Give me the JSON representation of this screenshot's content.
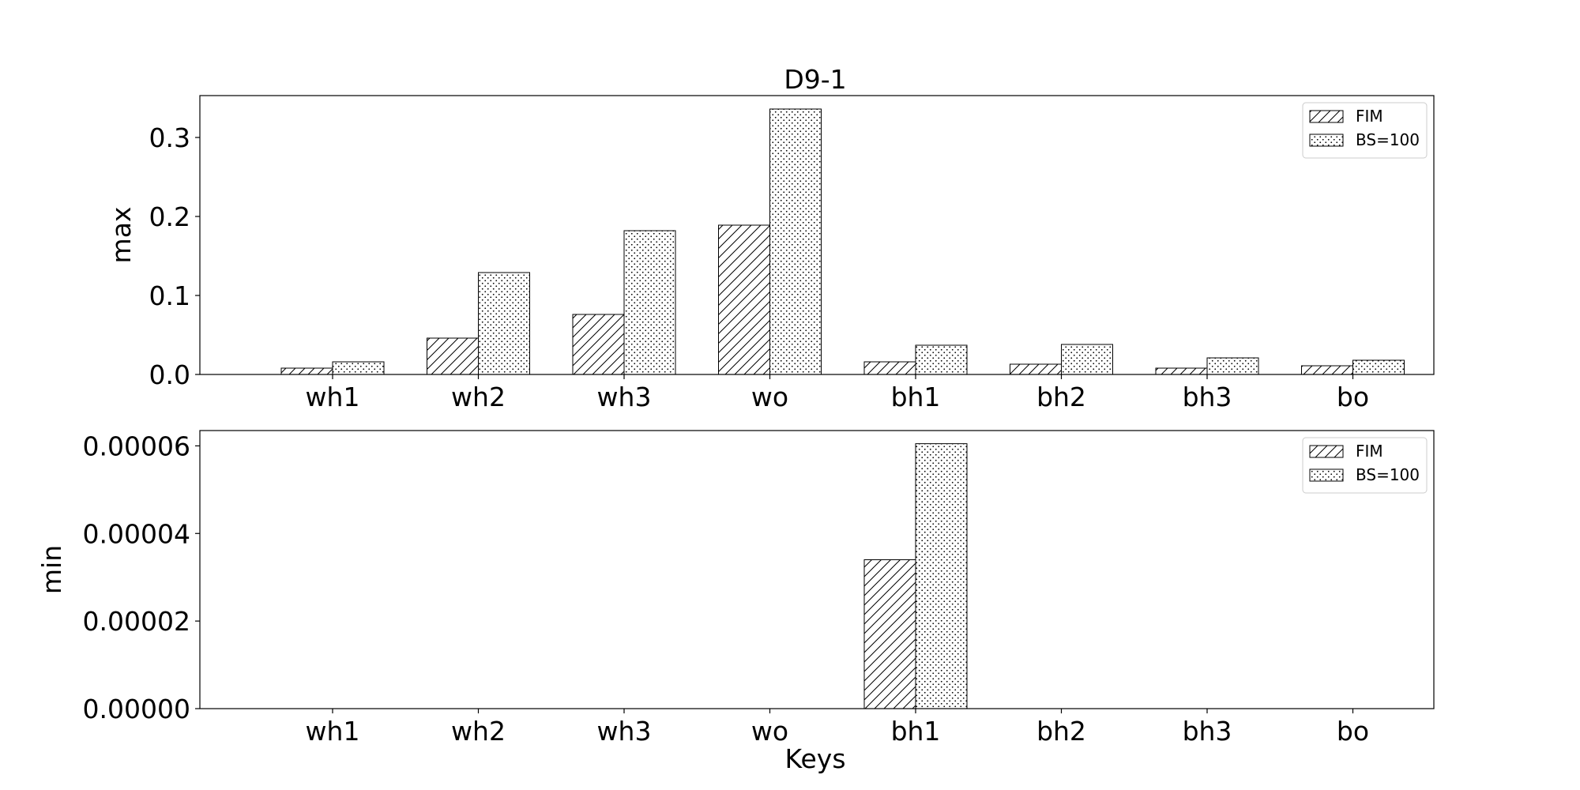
{
  "figure": {
    "title": "D9-1",
    "xlabel": "Keys"
  },
  "chart_data": [
    {
      "type": "bar",
      "title": "D9-1",
      "xlabel": "",
      "ylabel": "max",
      "ylim": [
        0,
        0.353
      ],
      "yticks": [
        "0.0",
        "0.1",
        "0.2",
        "0.3"
      ],
      "ytick_values": [
        0.0,
        0.1,
        0.2,
        0.3
      ],
      "categories": [
        "wh1",
        "wh2",
        "wh3",
        "wo",
        "bh1",
        "bh2",
        "bh3",
        "bo"
      ],
      "series": [
        {
          "name": "FIM",
          "pattern": "hatch-diagonal",
          "values": [
            0.008,
            0.046,
            0.076,
            0.189,
            0.016,
            0.013,
            0.008,
            0.011
          ]
        },
        {
          "name": "BS=100",
          "pattern": "hatch-dots",
          "values": [
            0.016,
            0.129,
            0.182,
            0.336,
            0.037,
            0.038,
            0.021,
            0.018
          ]
        }
      ],
      "legend": "top-right",
      "grid": false
    },
    {
      "type": "bar",
      "title": "",
      "xlabel": "Keys",
      "ylabel": "min",
      "ylim": [
        0,
        6.35e-05
      ],
      "yticks": [
        "0.00000",
        "0.00002",
        "0.00004",
        "0.00006"
      ],
      "ytick_values": [
        0.0,
        2e-05,
        4e-05,
        6e-05
      ],
      "categories": [
        "wh1",
        "wh2",
        "wh3",
        "wo",
        "bh1",
        "bh2",
        "bh3",
        "bo"
      ],
      "series": [
        {
          "name": "FIM",
          "pattern": "hatch-diagonal",
          "values": [
            0,
            0,
            0,
            0,
            3.4e-05,
            0,
            0,
            0
          ]
        },
        {
          "name": "BS=100",
          "pattern": "hatch-dots",
          "values": [
            0,
            0,
            0,
            0,
            6.05e-05,
            0,
            0,
            0
          ]
        }
      ],
      "legend": "top-right",
      "grid": false
    }
  ]
}
